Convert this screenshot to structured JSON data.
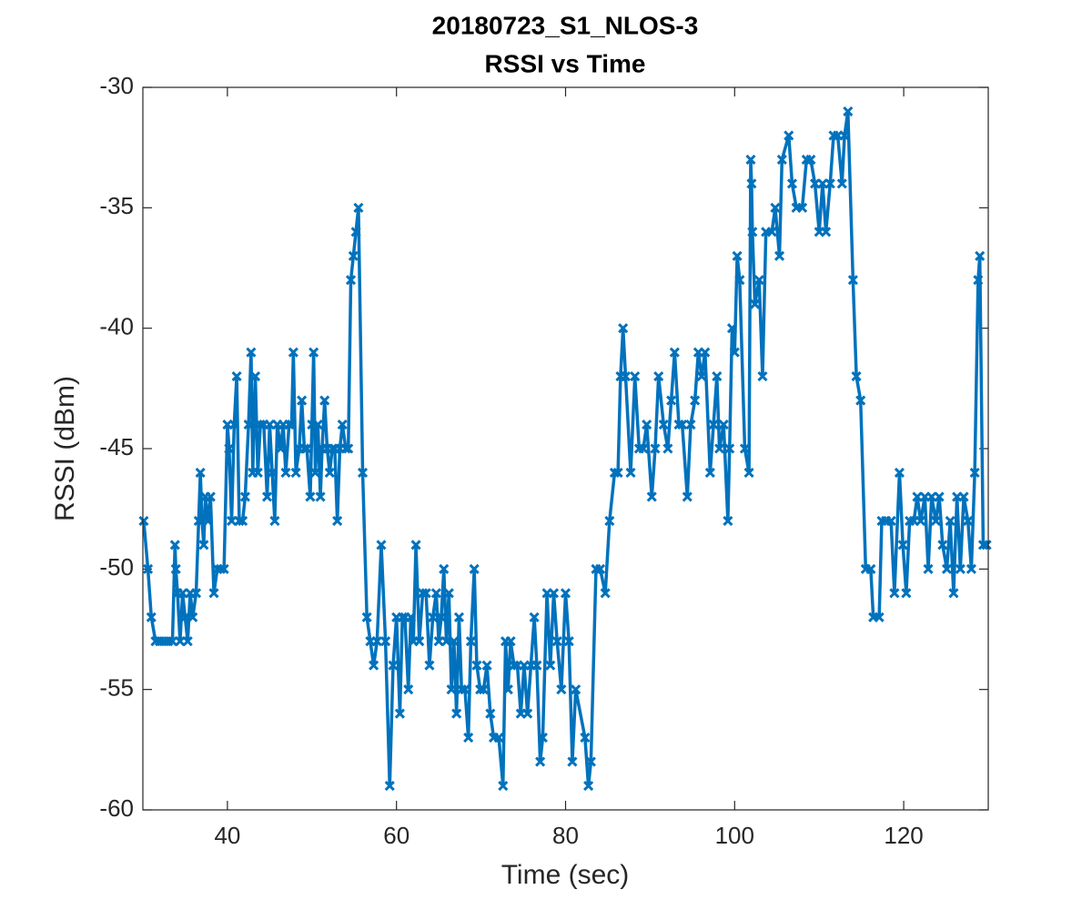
{
  "chart_data": {
    "type": "line",
    "title": "20180723_S1_NLOS-3",
    "subtitle": "RSSI vs Time",
    "x_label": "Time (sec)",
    "y_label": "RSSI (dBm)",
    "xlim": [
      30,
      130
    ],
    "ylim": [
      -60,
      -30
    ],
    "xticks": [
      40,
      60,
      80,
      100,
      120
    ],
    "yticks": [
      -60,
      -55,
      -50,
      -45,
      -40,
      -35,
      -30
    ],
    "grid": false,
    "marker": "x",
    "x": [
      30.1,
      30.6,
      31.0,
      31.5,
      32.0,
      32.5,
      33.0,
      33.5,
      33.8,
      33.9,
      34.1,
      34.4,
      34.7,
      35.0,
      35.3,
      35.6,
      35.9,
      36.3,
      36.6,
      36.8,
      37.0,
      37.2,
      37.4,
      37.7,
      38.0,
      38.4,
      38.8,
      39.2,
      39.6,
      40.0,
      40.2,
      40.5,
      40.8,
      41.1,
      41.4,
      41.8,
      42.1,
      42.5,
      42.8,
      43.0,
      43.3,
      43.6,
      43.9,
      44.3,
      44.7,
      45.0,
      45.3,
      45.6,
      45.9,
      46.3,
      46.6,
      46.9,
      47.3,
      47.6,
      47.8,
      48.1,
      48.5,
      48.8,
      49.1,
      49.4,
      49.8,
      50.0,
      50.2,
      50.4,
      50.7,
      51.0,
      51.2,
      51.5,
      51.8,
      52.1,
      52.4,
      52.7,
      53.0,
      53.3,
      53.6,
      54.0,
      54.3,
      54.6,
      54.9,
      55.2,
      55.5,
      56.0,
      56.5,
      56.9,
      57.3,
      57.7,
      58.2,
      58.7,
      59.2,
      59.6,
      60.0,
      60.4,
      60.7,
      61.0,
      61.4,
      61.7,
      62.0,
      62.3,
      62.7,
      63.1,
      63.5,
      63.9,
      64.3,
      64.7,
      65.0,
      65.3,
      65.6,
      65.9,
      66.2,
      66.5,
      66.8,
      67.1,
      67.4,
      67.7,
      68.1,
      68.5,
      68.8,
      69.2,
      69.5,
      69.9,
      70.3,
      70.7,
      71.1,
      71.5,
      72.1,
      72.6,
      72.9,
      73.2,
      73.5,
      73.9,
      74.3,
      74.7,
      75.1,
      75.5,
      75.9,
      76.3,
      76.6,
      77.0,
      77.3,
      77.8,
      78.2,
      78.6,
      79.0,
      79.5,
      80.0,
      80.4,
      80.8,
      81.2,
      82.3,
      82.7,
      83.0,
      83.6,
      84.1,
      84.7,
      85.2,
      85.8,
      86.2,
      86.5,
      86.8,
      87.1,
      87.7,
      88.2,
      88.7,
      89.2,
      89.6,
      90.2,
      90.6,
      91.0,
      91.6,
      92.1,
      92.5,
      92.9,
      93.4,
      93.8,
      94.4,
      94.8,
      95.3,
      95.7,
      96.1,
      96.5,
      97.1,
      97.5,
      97.9,
      98.2,
      98.7,
      99.2,
      99.4,
      99.7,
      100.0,
      100.3,
      100.6,
      101.2,
      101.7,
      101.9,
      102.0,
      102.1,
      102.4,
      102.9,
      103.3,
      103.7,
      104.4,
      104.8,
      105.3,
      105.6,
      106.4,
      106.8,
      107.3,
      108.0,
      108.5,
      109.0,
      109.5,
      110.0,
      110.4,
      110.8,
      111.3,
      111.7,
      112.2,
      112.7,
      113.0,
      113.4,
      114.0,
      114.4,
      114.9,
      115.5,
      116.1,
      116.4,
      117.1,
      117.4,
      117.9,
      118.5,
      118.9,
      119.5,
      119.9,
      120.3,
      120.7,
      121.2,
      121.6,
      122.0,
      122.5,
      122.9,
      123.3,
      123.8,
      124.2,
      124.6,
      125.1,
      125.5,
      125.9,
      126.3,
      126.7,
      127.1,
      127.6,
      128.0,
      128.4,
      128.8,
      129.0,
      129.4,
      129.8
    ],
    "series": [
      {
        "color": "#0072bd",
        "values": [
          -48,
          -50,
          -52,
          -53,
          -53,
          -53,
          -53,
          -53,
          -49,
          -50,
          -51,
          -53,
          -51,
          -52,
          -53,
          -51,
          -52,
          -51,
          -48,
          -46,
          -48,
          -49,
          -47,
          -48,
          -47,
          -51,
          -50,
          -50,
          -50,
          -44,
          -45,
          -48,
          -44,
          -42,
          -48,
          -48,
          -47,
          -44,
          -41,
          -46,
          -42,
          -46,
          -44,
          -44,
          -47,
          -44,
          -46,
          -48,
          -44,
          -45,
          -44,
          -46,
          -44,
          -44,
          -41,
          -46,
          -45,
          -43,
          -45,
          -45,
          -47,
          -44,
          -41,
          -46,
          -44,
          -47,
          -45,
          -43,
          -45,
          -46,
          -45,
          -45,
          -48,
          -45,
          -44,
          -45,
          -45,
          -38,
          -37,
          -36,
          -35,
          -46,
          -52,
          -53,
          -54,
          -53,
          -49,
          -53,
          -59,
          -54,
          -52,
          -56,
          -52,
          -52,
          -55,
          -52,
          -53,
          -49,
          -53,
          -51,
          -51,
          -54,
          -52,
          -51,
          -53,
          -52,
          -50,
          -53,
          -51,
          -55,
          -53,
          -56,
          -52,
          -55,
          -55,
          -57,
          -53,
          -50,
          -54,
          -55,
          -55,
          -54,
          -56,
          -57,
          -57,
          -59,
          -53,
          -55,
          -53,
          -54,
          -54,
          -56,
          -54,
          -56,
          -54,
          -52,
          -54,
          -58,
          -57,
          -51,
          -54,
          -51,
          -53,
          -55,
          -51,
          -53,
          -58,
          -55,
          -57,
          -59,
          -58,
          -50,
          -50,
          -51,
          -48,
          -46,
          -46,
          -42,
          -40,
          -42,
          -46,
          -42,
          -45,
          -45,
          -44,
          -47,
          -45,
          -42,
          -44,
          -45,
          -43,
          -41,
          -44,
          -44,
          -47,
          -44,
          -43,
          -41,
          -42,
          -41,
          -46,
          -44,
          -42,
          -45,
          -44,
          -48,
          -45,
          -40,
          -41,
          -37,
          -38,
          -45,
          -46,
          -33,
          -34,
          -36,
          -39,
          -38,
          -42,
          -36,
          -36,
          -35,
          -37,
          -33,
          -32,
          -34,
          -35,
          -35,
          -33,
          -33,
          -34,
          -36,
          -34,
          -36,
          -34,
          -32,
          -32,
          -34,
          -32,
          -31,
          -38,
          -42,
          -43,
          -50,
          -50,
          -52,
          -52,
          -48,
          -48,
          -48,
          -51,
          -46,
          -49,
          -51,
          -48,
          -48,
          -47,
          -48,
          -47,
          -50,
          -47,
          -48,
          -47,
          -49,
          -50,
          -48,
          -51,
          -47,
          -50,
          -47,
          -48,
          -50,
          -46,
          -38,
          -37,
          -49,
          -49
        ]
      }
    ]
  }
}
